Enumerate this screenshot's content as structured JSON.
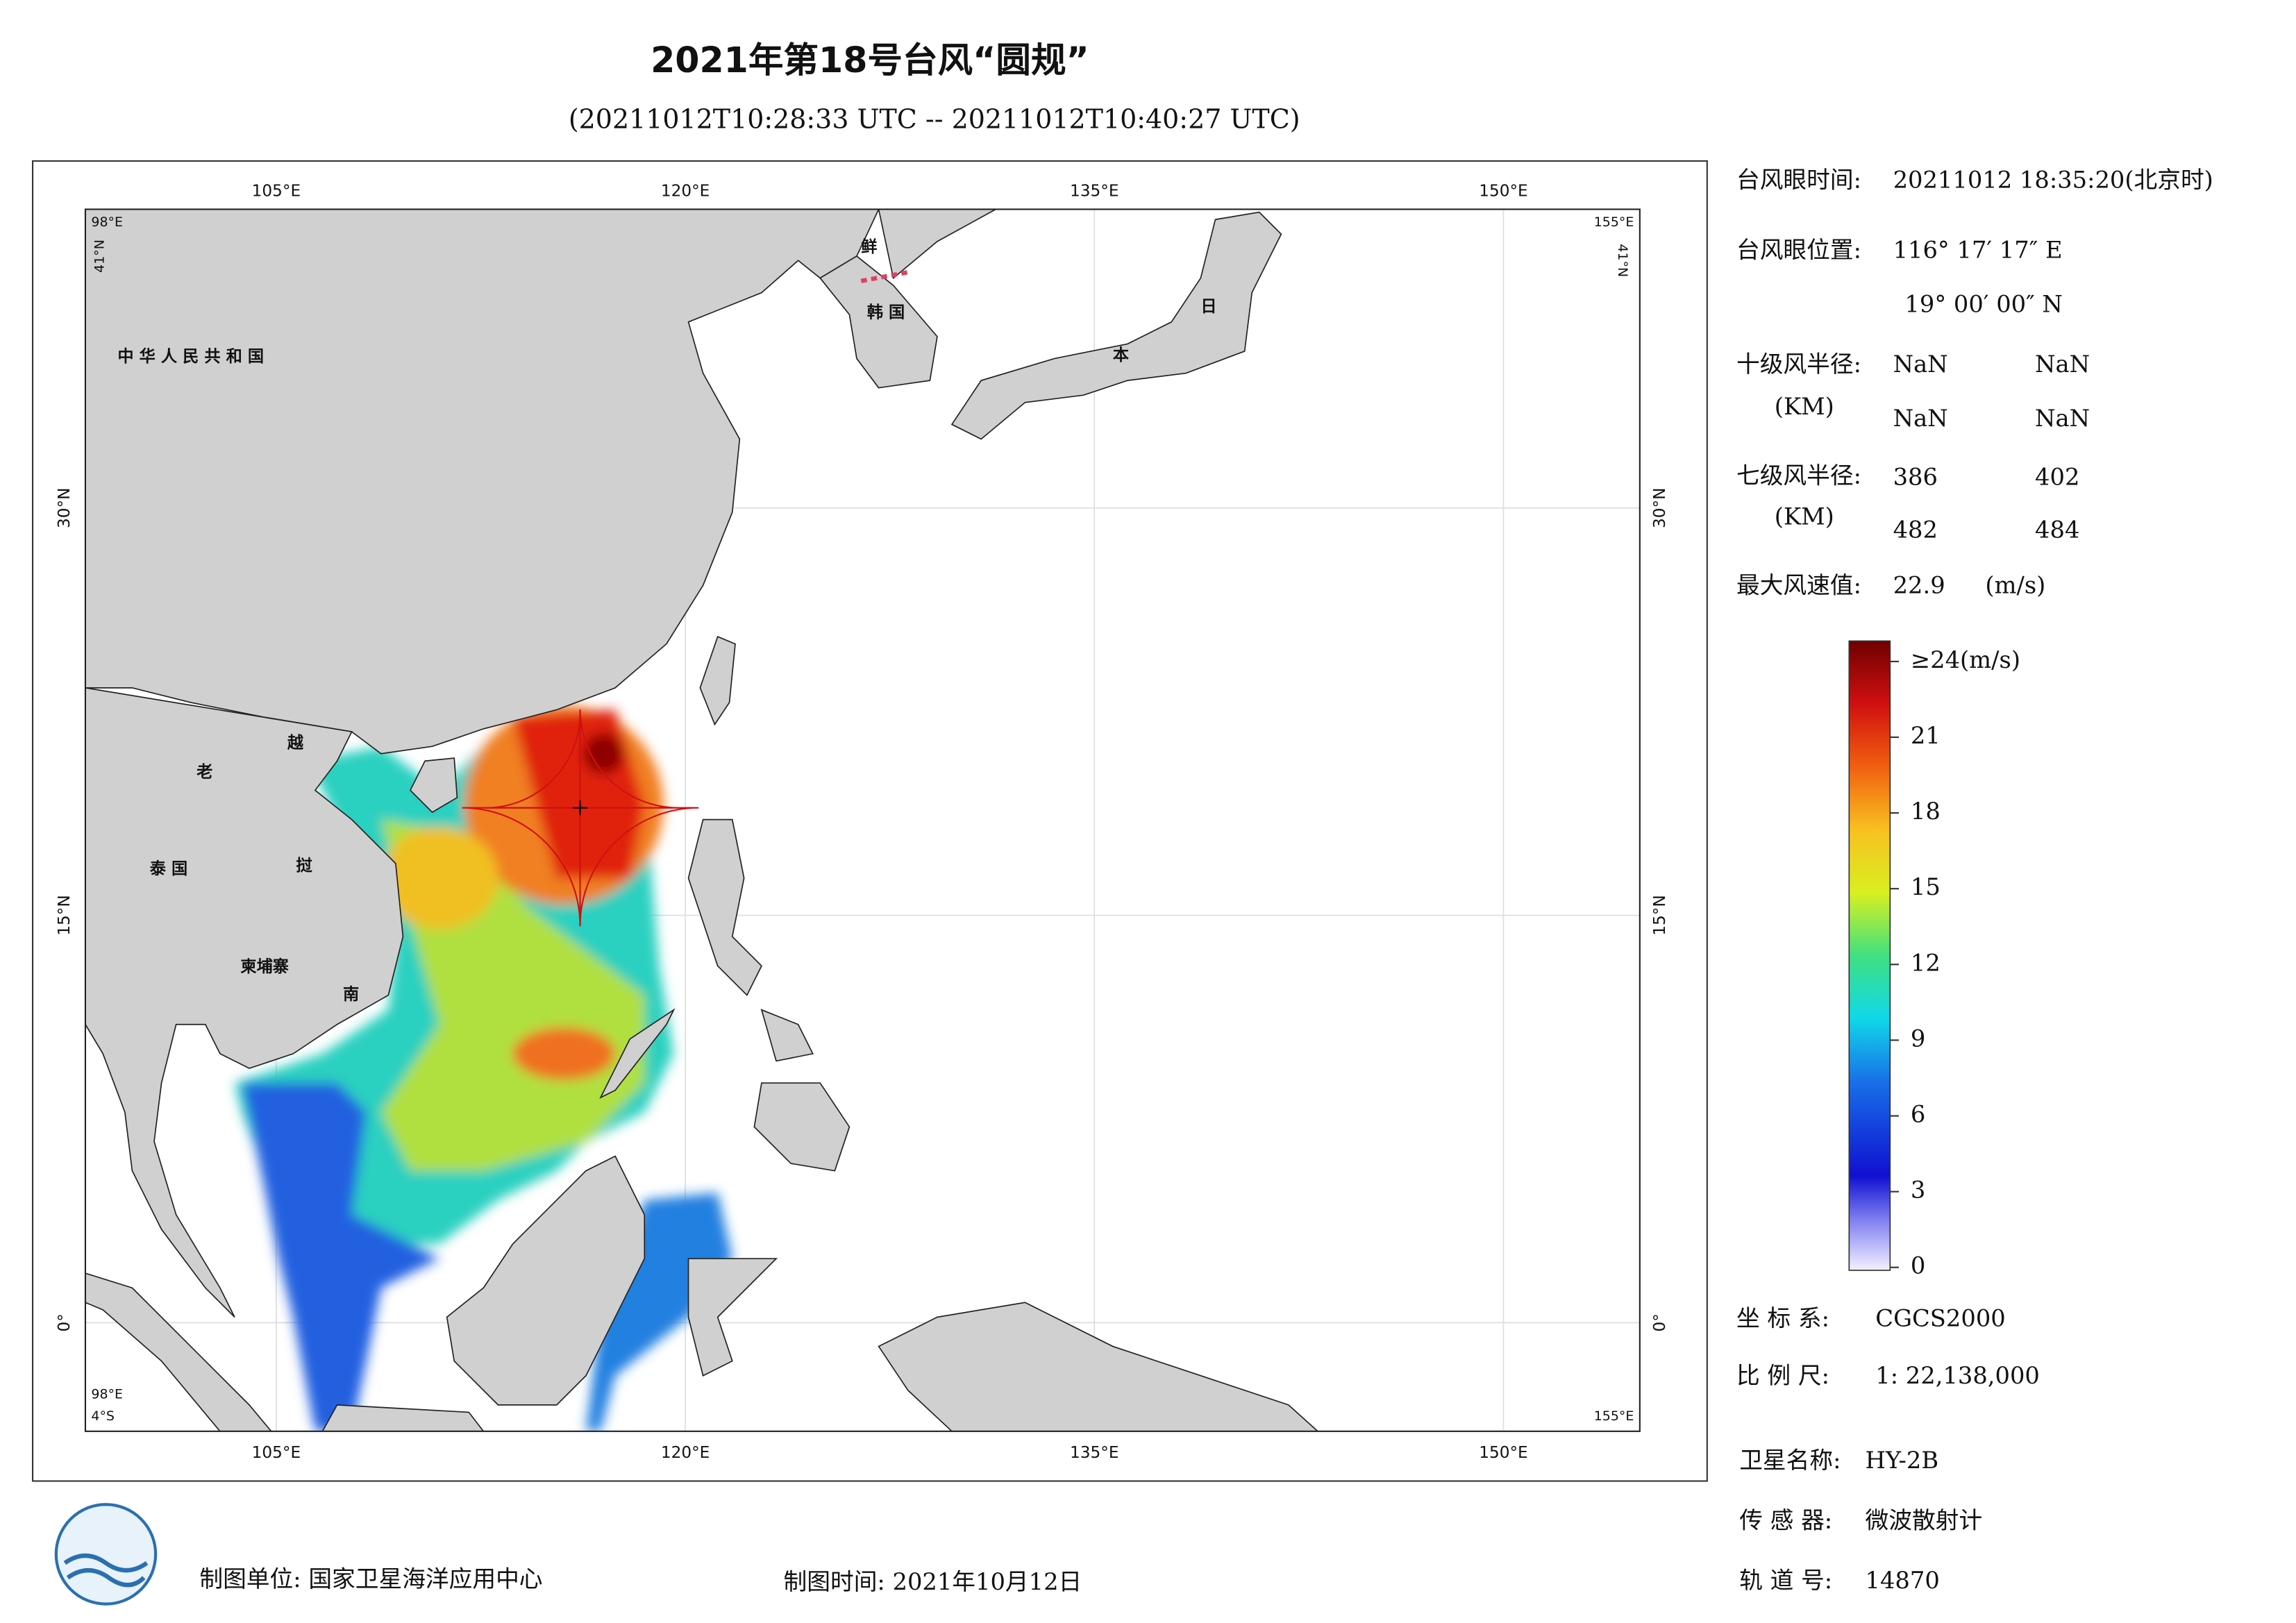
{
  "header": {
    "title": "2021年第18号台风“圆规”",
    "subtitle": "(20211012T10:28:33 UTC -- 20211012T10:40:27 UTC)"
  },
  "map": {
    "xlim": [
      98,
      155
    ],
    "ylim": [
      -4,
      41
    ],
    "xticks": [
      {
        "value": 105,
        "label": "105°E"
      },
      {
        "value": 120,
        "label": "120°E"
      },
      {
        "value": 135,
        "label": "135°E"
      },
      {
        "value": 150,
        "label": "150°E"
      }
    ],
    "yticks": [
      {
        "value": 0,
        "label": "0°"
      },
      {
        "value": 15,
        "label": "15°N"
      },
      {
        "value": 30,
        "label": "30°N"
      }
    ],
    "corner_labels": {
      "west": "98°E",
      "east": "155°E",
      "north": "41°N",
      "south": "4°S"
    },
    "place_labels": [
      "中 华 人 民 共 和 国",
      "老",
      "越",
      "挝",
      "泰 国",
      "柬埔寨",
      "南",
      "鲜",
      "韩 国",
      "日",
      "本"
    ]
  },
  "colorbar": {
    "clim": [
      0,
      24
    ],
    "ticks": [
      0,
      3,
      6,
      9,
      12,
      15,
      18,
      21,
      {
        "value": 24,
        "label": "≥24(m/s)"
      }
    ]
  },
  "info": {
    "eye_time": {
      "label": "台风眼时间:",
      "value": "20211012 18:35:20(北京时)"
    },
    "eye_position": {
      "label": "台风眼位置:",
      "lon": "116° 17′ 17″ E",
      "lat": "19° 00′ 00″ N"
    },
    "wind10": {
      "label": "十级风半径:",
      "unit": "(KM)",
      "values": [
        "NaN",
        "NaN",
        "NaN",
        "NaN"
      ]
    },
    "wind7": {
      "label": "七级风半径:",
      "unit": "(KM)",
      "values": [
        386,
        402,
        482,
        484
      ]
    },
    "max_wind": {
      "label": "最大风速值:",
      "value": 22.9,
      "unit": "(m/s)"
    },
    "coordinate_system": {
      "label": "坐 标 系:",
      "value": "CGCS2000"
    },
    "scale": {
      "label": "比 例 尺:",
      "value": "1: 22,138,000"
    },
    "satellite": {
      "label": "卫星名称:",
      "value": "HY-2B"
    },
    "sensor": {
      "label": "传 感 器:",
      "value": "微波散射计"
    },
    "orbit": {
      "label": "轨 道 号:",
      "value": 14870
    }
  },
  "footer": {
    "organization": "制图单位: 国家卫星海洋应用中心",
    "date": "制图时间: 2021年10月12日"
  }
}
